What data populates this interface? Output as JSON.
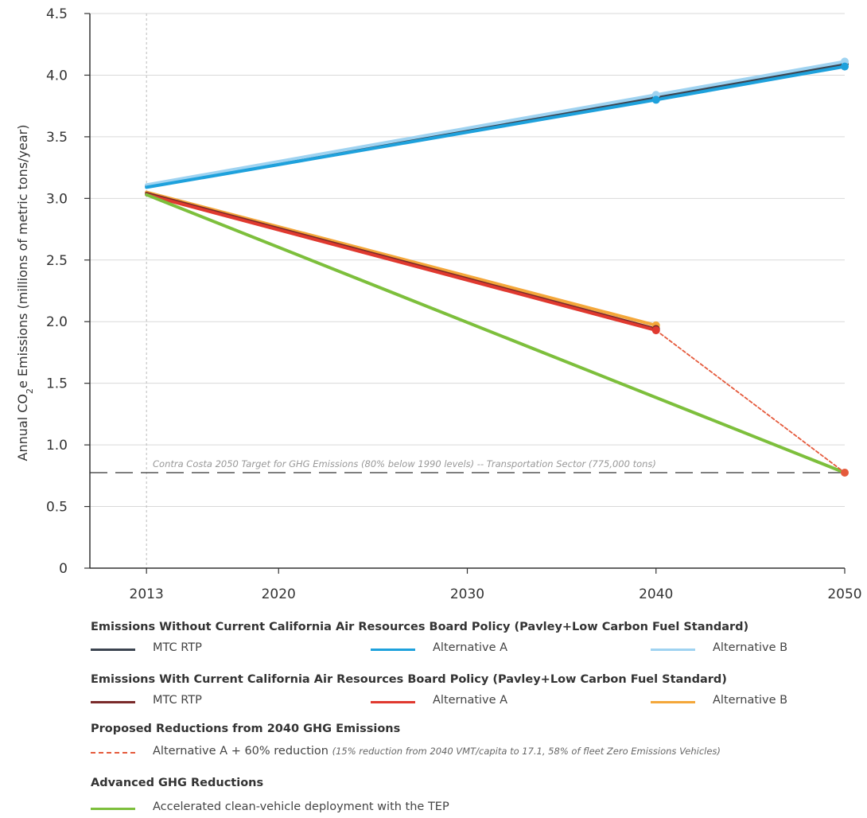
{
  "chart_data": {
    "type": "line",
    "title": "",
    "xlabel": "",
    "ylabel_parts": [
      "Annual CO",
      "2",
      "e Emissions (millions of metric tons/year)"
    ],
    "x_ticks": [
      "2013",
      "2020",
      "2030",
      "2040",
      "2050"
    ],
    "y_ticks": [
      "0",
      "0.5",
      "1.0",
      "1.5",
      "2.0",
      "2.5",
      "3.0",
      "3.5",
      "4.0",
      "4.5"
    ],
    "xlim": [
      2010,
      2050
    ],
    "ylim": [
      0,
      4.5
    ],
    "grid": "horizontal",
    "series": [
      {
        "group": "without",
        "name": "MTC RTP",
        "color": "#3b4450",
        "x": [
          2013,
          2040,
          2050
        ],
        "y": [
          3.1,
          3.82,
          4.09
        ],
        "style": "solid"
      },
      {
        "group": "without",
        "name": "Alternative A",
        "color": "#1ea1dc",
        "x": [
          2013,
          2040,
          2050
        ],
        "y": [
          3.09,
          3.8,
          4.07
        ],
        "style": "solid"
      },
      {
        "group": "without",
        "name": "Alternative B",
        "color": "#9fd3f1",
        "x": [
          2013,
          2040,
          2050
        ],
        "y": [
          3.11,
          3.84,
          4.11
        ],
        "style": "solid"
      },
      {
        "group": "with",
        "name": "MTC RTP",
        "color": "#7a2a2a",
        "x": [
          2013,
          2040
        ],
        "y": [
          3.04,
          1.94
        ],
        "style": "solid"
      },
      {
        "group": "with",
        "name": "Alternative A",
        "color": "#e0392f",
        "x": [
          2013,
          2040
        ],
        "y": [
          3.03,
          1.93
        ],
        "style": "solid"
      },
      {
        "group": "with",
        "name": "Alternative B",
        "color": "#f4a73a",
        "x": [
          2013,
          2040
        ],
        "y": [
          3.05,
          1.97
        ],
        "style": "solid"
      },
      {
        "group": "proposed",
        "name": "Alternative A + 60% reduction",
        "color": "#e55a3c",
        "x": [
          2040,
          2050
        ],
        "y": [
          1.93,
          0.775
        ],
        "style": "dashed"
      },
      {
        "group": "advanced",
        "name": "Accelerated clean-vehicle deployment with the TEP",
        "color": "#7dbf3c",
        "x": [
          2013,
          2050
        ],
        "y": [
          3.03,
          0.775
        ],
        "style": "solid"
      }
    ],
    "reference_line": {
      "y": 0.775,
      "label": "Contra Costa 2050 Target for GHG Emissions (80% below 1990 levels) -- Transportation Sector (775,000 tons)"
    }
  },
  "legend": {
    "group1_title": "Emissions Without Current California Air Resources Board Policy (Pavley+Low Carbon Fuel Standard)",
    "group1_items": [
      "MTC RTP",
      "Alternative A",
      "Alternative B"
    ],
    "group2_title": "Emissions With Current California Air Resources Board Policy (Pavley+Low Carbon Fuel Standard)",
    "group2_items": [
      "MTC RTP",
      "Alternative A",
      "Alternative B"
    ],
    "group3_title": "Proposed Reductions from 2040 GHG Emissions",
    "group3_item": "Alternative A + 60% reduction ",
    "group3_note": "(15% reduction from 2040 VMT/capita to 17.1, 58% of fleet Zero Emissions Vehicles)",
    "group4_title": "Advanced GHG Reductions",
    "group4_item": "Accelerated clean-vehicle deployment with the TEP"
  }
}
